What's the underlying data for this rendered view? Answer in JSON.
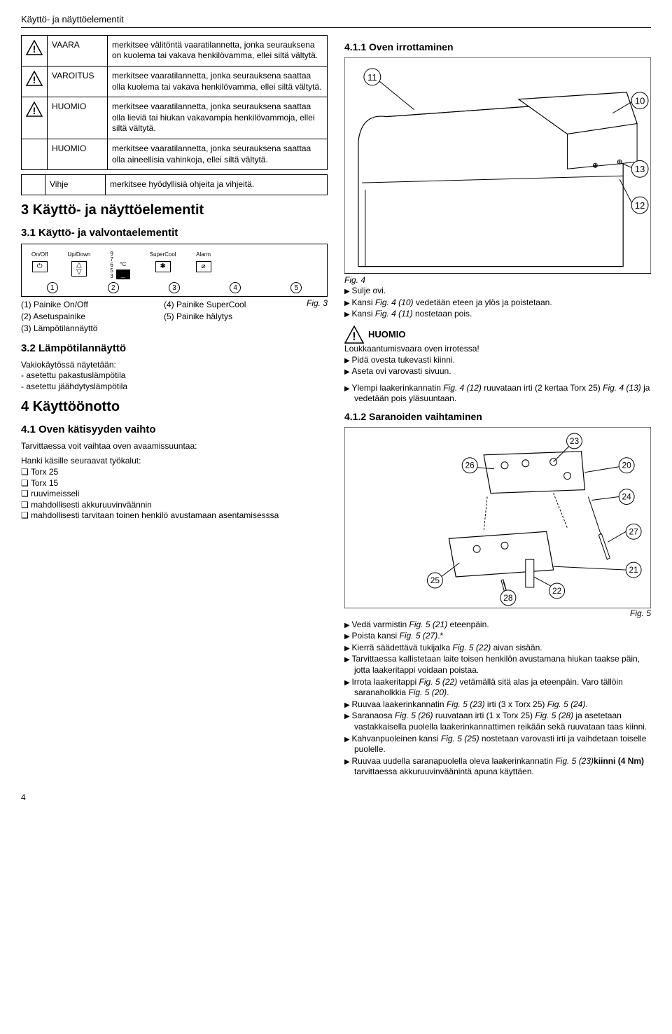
{
  "header": "Käyttö- ja näyttöelementit",
  "warn_table": {
    "rows": [
      {
        "label": "VAARA",
        "text": "merkitsee välitöntä vaaratilannetta, jonka seurauksena on kuolema tai vakava henkilövamma, ellei siltä vältytä.",
        "icon": true
      },
      {
        "label": "VAROITUS",
        "text": "merkitsee vaaratilannetta, jonka seurauksena saattaa olla kuolema tai vakava henkilövamma, ellei siltä vältytä.",
        "icon": true
      },
      {
        "label": "HUOMIO",
        "text": "merkitsee vaaratilannetta, jonka seurauksena saattaa olla lieviä tai hiukan vakavampia henkilövammoja, ellei siltä vältytä.",
        "icon": true
      },
      {
        "label": "HUOMIO",
        "text": "merkitsee vaaratilannetta, jonka seurauksena saattaa olla aineellisia vahinkoja, ellei siltä vältytä.",
        "icon": false
      }
    ]
  },
  "hint_table": {
    "label": "Vihje",
    "text": "merkitsee hyödyllisiä ohjeita ja vihjeitä."
  },
  "sec3_title": "3 Käyttö- ja näyttöelementit",
  "sec31_title": "3.1 Käyttö- ja valvontaelementit",
  "panel": {
    "labels": {
      "onoff": "On/Off",
      "updown": "Up/Down",
      "degc": "°C",
      "super": "SuperCool",
      "alarm": "Alarm"
    },
    "temps": [
      "9",
      "7",
      "6",
      "5",
      "3"
    ],
    "display": "_",
    "callouts": [
      "1",
      "2",
      "3",
      "4",
      "5"
    ],
    "fig_label": "Fig. 3"
  },
  "legend": {
    "left": [
      "(1) Painike On/Off",
      "(2) Asetuspainike",
      "(3) Lämpötilannäyttö"
    ],
    "right": [
      "(4) Painike SuperCool",
      "(5) Painike hälytys"
    ]
  },
  "sec32_title": "3.2 Lämpötilannäyttö",
  "sec32_intro": "Vakiokäytössä näytetään:",
  "sec32_items": [
    "asetettu pakastuslämpötila",
    "asetettu jäähdytyslämpötila"
  ],
  "sec4_title": "4 Käyttöönotto",
  "sec41_title": "4.1 Oven kätisyyden vaihto",
  "sec41_p1": "Tarvittaessa voit vaihtaa oven avaamissuuntaa:",
  "sec41_p2": "Hanki käsille seuraavat työkalut:",
  "sec41_tools": [
    "Torx 25",
    "Torx 15",
    "ruuvimeisseli",
    "mahdollisesti akkuruuvinväännin",
    "mahdollisesti tarvitaan toinen henkilö avustamaan asentamisesssa"
  ],
  "sec411_title": "4.1.1 Oven irrottaminen",
  "fig4": {
    "callouts": {
      "c11": "11",
      "c10": "10",
      "c13": "13",
      "c12": "12"
    },
    "label": "Fig. 4",
    "bullets": [
      "Sulje ovi.",
      "Kansi <i>Fig. 4 (10)</i> vedetään eteen ja ylös ja poistetaan.",
      "Kansi <i>Fig. 4 (11)</i> nostetaan pois."
    ]
  },
  "huomio": {
    "title": "HUOMIO",
    "line1": "Loukkaantumisvaara oven irrotessa!",
    "bullets": [
      "Pidä ovesta tukevasti kiinni.",
      "Aseta ovi varovasti sivuun."
    ]
  },
  "below_huomio": "Ylempi laakerinkannatin <i>Fig. 4 (12)</i> ruuvataan irti (2 kertaa Torx 25) <i>Fig. 4 (13)</i> ja vedetään pois yläsuuntaan.",
  "sec412_title": "4.1.2 Saranoiden vaihtaminen",
  "fig5": {
    "callouts": {
      "c20": "20",
      "c21": "21",
      "c22": "22",
      "c23": "23",
      "c24": "24",
      "c25": "25",
      "c26": "26",
      "c27": "27",
      "c28": "28"
    },
    "label": "Fig. 5",
    "bullets": [
      "Vedä varmistin <i>Fig. 5 (21)</i> eteenpäin.",
      "Poista kansi <i>Fig. 5 (27)</i>.*",
      "Kierrä säädettävä tukijalka <i>Fig. 5 (22)</i> aivan sisään.",
      "Tarvittaessa kallistetaan laite toisen henkilön avustamana hiukan taakse päin, jotta laakeritappi voidaan poistaa.",
      "Irrota laakeritappi <i>Fig. 5 (22)</i> vetämällä sitä alas ja eteenpäin. Varo tällöin saranaholkkia <i>Fig. 5 (20)</i>.",
      "Ruuvaa laakerinkannatin <i>Fig. 5 (23)</i> irti (3 x Torx 25) <i>Fig. 5 (24)</i>.",
      "Saranaosa <i>Fig. 5 (26)</i> ruuvataan irti (1 x Torx 25) <i>Fig. 5 (28)</i> ja asetetaan vastakkaisella puolella laakerinkannattimen reikään sekä ruuvataan taas kiinni.",
      "Kahvanpuoleinen kansi <i>Fig. 5 (25)</i> nostetaan varovasti irti ja vaihdetaan toiselle puolelle.",
      "Ruuvaa uudella saranapuolella oleva laakerinkannatin <i>Fig. 5 (23)</i><b>kiinni (4 Nm)</b> tarvittaessa akkuruuvinväänintä apuna käyttäen."
    ]
  },
  "page_num": "4",
  "colors": {
    "text": "#000000",
    "bg": "#ffffff",
    "tri_border": "#000000",
    "tri_fill": "#ffffff",
    "alert_fill": "#000000"
  }
}
